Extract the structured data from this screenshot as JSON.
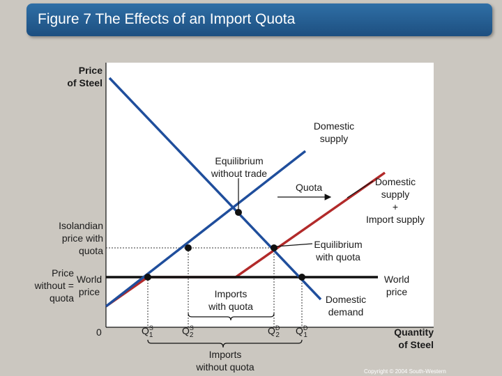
{
  "title": "Figure 7 The Effects of an Import Quota",
  "axes": {
    "y_label": "Price\nof Steel",
    "x_label": "Quantity\nof Steel",
    "origin": "0"
  },
  "quantity_labels": {
    "q1s": {
      "base": "Q",
      "sup": "S",
      "sub": "1"
    },
    "q2s": {
      "base": "Q",
      "sup": "S",
      "sub": "2"
    },
    "q2d": {
      "base": "Q",
      "sup": "D",
      "sub": "2"
    },
    "q1d": {
      "base": "Q",
      "sup": "D",
      "sub": "1"
    }
  },
  "labels": {
    "domestic_supply": "Domestic\nsupply",
    "equilibrium_without_trade": "Equilibrium\nwithout trade",
    "quota": "Quota",
    "domestic_plus_import_supply": "Domestic\nsupply\n+\nImport supply",
    "isolandian_price_with_quota": "Isolandian\nprice with\nquota",
    "equilibrium_with_quota": "Equilibrium\nwith quota",
    "price_without_quota": "Price\nwithout =\nquota",
    "world_price_left": "World\nprice",
    "world_price_right": "World\nprice",
    "imports_with_quota": "Imports\nwith quota",
    "domestic_demand": "Domestic\ndemand",
    "imports_without_quota": "Imports\nwithout quota"
  },
  "colors": {
    "title_bar": "#2a64a0",
    "supply": "#1f4e9c",
    "demand": "#1f4e9c",
    "import_supply": "#b22a2a",
    "world_price": "#111111"
  },
  "copyright": "Copyright © 2004 South-Western"
}
